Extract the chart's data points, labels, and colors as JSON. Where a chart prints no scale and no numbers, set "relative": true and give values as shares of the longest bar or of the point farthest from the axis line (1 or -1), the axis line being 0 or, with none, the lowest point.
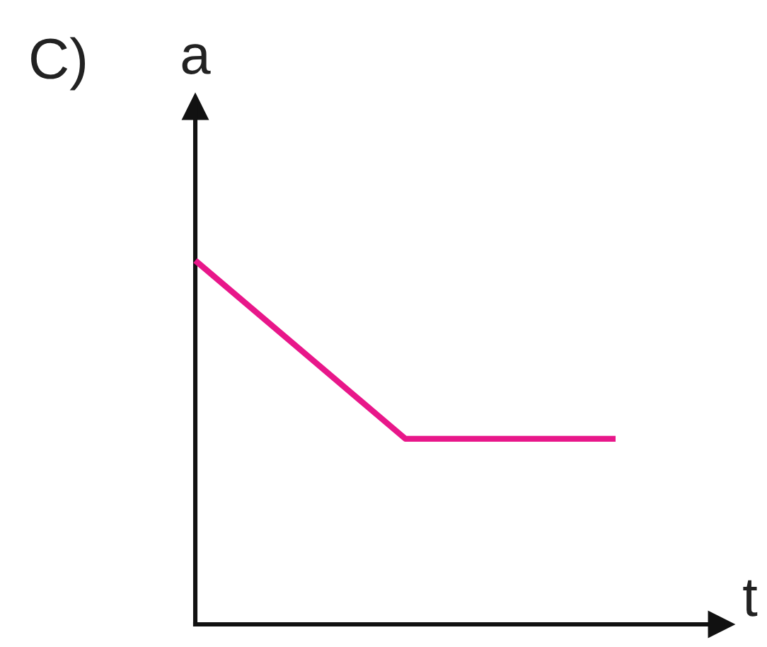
{
  "chart_data": {
    "type": "line",
    "relative": true,
    "title": "C)",
    "xlabel": "t",
    "ylabel": "a",
    "categories": [
      null,
      null,
      null
    ],
    "series": [
      {
        "color": "#e8178a",
        "values": [
          1,
          0.51,
          0.51
        ]
      }
    ]
  }
}
